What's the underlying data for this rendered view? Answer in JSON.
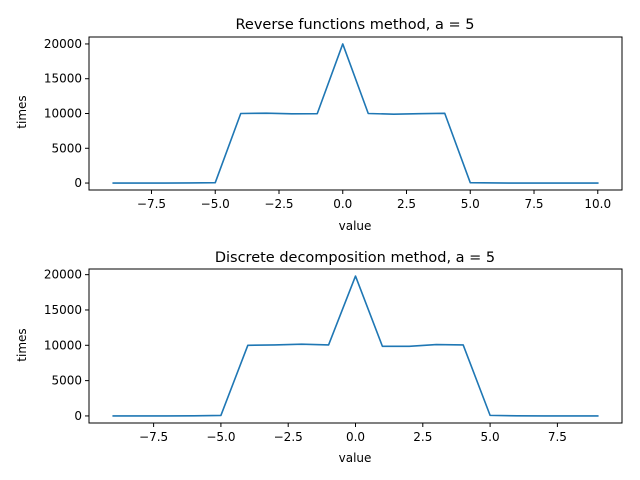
{
  "chart_data": [
    {
      "type": "line",
      "title": "Reverse functions method, a = 5",
      "xlabel": "value",
      "ylabel": "times",
      "xlim": [
        -9.95,
        10.95
      ],
      "ylim": [
        -1000,
        21000
      ],
      "xticks": [
        -7.5,
        -5.0,
        -2.5,
        0.0,
        2.5,
        5.0,
        7.5,
        10.0
      ],
      "xtick_labels": [
        "−7.5",
        "−5.0",
        "−2.5",
        "0.0",
        "2.5",
        "5.0",
        "7.5",
        "10.0"
      ],
      "yticks": [
        0,
        5000,
        10000,
        15000,
        20000
      ],
      "ytick_labels": [
        "0",
        "5000",
        "10000",
        "15000",
        "20000"
      ],
      "grid": false,
      "series": [
        {
          "color": "#1f77b4",
          "x": [
            -9,
            -8,
            -7,
            -6,
            -5,
            -4,
            -3,
            -2,
            -1,
            0,
            1,
            2,
            3,
            4,
            5,
            6,
            7,
            8,
            9,
            10
          ],
          "y": [
            0,
            0,
            0,
            10,
            50,
            10000,
            10050,
            9950,
            9980,
            20000,
            10000,
            9900,
            9980,
            10020,
            50,
            10,
            0,
            0,
            0,
            0
          ]
        }
      ]
    },
    {
      "type": "line",
      "title": "Discrete decomposition method, a = 5",
      "xlabel": "value",
      "ylabel": "times",
      "xlim": [
        -9.9,
        9.9
      ],
      "ylim": [
        -1000,
        20800
      ],
      "xticks": [
        -7.5,
        -5.0,
        -2.5,
        0.0,
        2.5,
        5.0,
        7.5
      ],
      "xtick_labels": [
        "−7.5",
        "−5.0",
        "−2.5",
        "0.0",
        "2.5",
        "5.0",
        "7.5"
      ],
      "yticks": [
        0,
        5000,
        10000,
        15000,
        20000
      ],
      "ytick_labels": [
        "0",
        "5000",
        "10000",
        "15000",
        "20000"
      ],
      "grid": false,
      "series": [
        {
          "color": "#1f77b4",
          "x": [
            -9,
            -8,
            -7,
            -6,
            -5,
            -4,
            -3,
            -2,
            -1,
            0,
            1,
            2,
            3,
            4,
            5,
            6,
            7,
            8,
            9
          ],
          "y": [
            0,
            0,
            0,
            20,
            70,
            10000,
            10050,
            10150,
            10050,
            19800,
            9850,
            9850,
            10100,
            10050,
            80,
            20,
            0,
            0,
            0
          ]
        }
      ]
    }
  ]
}
